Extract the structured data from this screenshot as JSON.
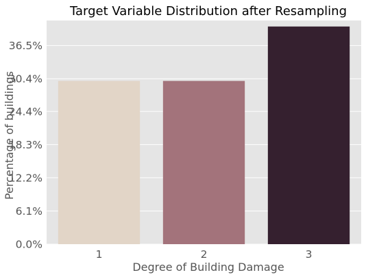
{
  "chart_data": {
    "type": "bar",
    "title": "Target Variable Distribution after Resampling",
    "xlabel": "Degree of Building Damage",
    "ylabel": "Percentage of buildings",
    "categories": [
      "1",
      "2",
      "3"
    ],
    "values": [
      30.0,
      30.0,
      40.0
    ],
    "value_unit": "percent",
    "colors": [
      "#e2d5c7",
      "#a3737b",
      "#35202f"
    ],
    "ylim": [
      0,
      41.1
    ],
    "yticks": [
      0.0,
      6.1,
      12.2,
      18.3,
      24.4,
      30.4,
      36.5
    ],
    "ytick_labels": [
      "0.0%",
      "6.1%",
      "12.2%",
      "18.3%",
      "24.4%",
      "30.4%",
      "36.5%"
    ],
    "grid": true,
    "background": "#e5e5e5",
    "grid_color": "#ffffff"
  }
}
